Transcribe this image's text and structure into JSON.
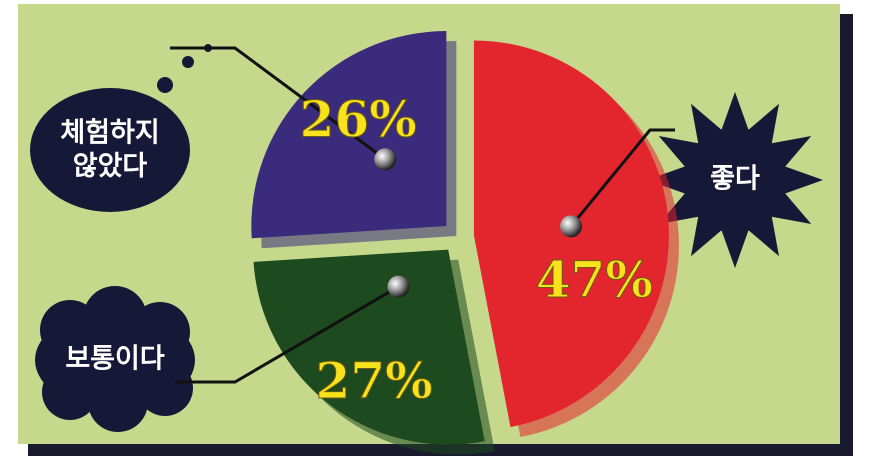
{
  "chart_data": {
    "type": "pie",
    "categories": [
      "좋다",
      "보통이다",
      "체험하지 않았다"
    ],
    "values": [
      47,
      27,
      26
    ],
    "value_labels": [
      "47%",
      "27%",
      "26%"
    ],
    "colors": [
      "#e3252d",
      "#1d4a1f",
      "#3b2b7c"
    ]
  }
}
